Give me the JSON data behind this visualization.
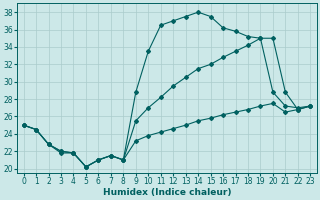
{
  "xlabel": "Humidex (Indice chaleur)",
  "background_color": "#cce8e8",
  "grid_color": "#aacccc",
  "line_color": "#006060",
  "xlim": [
    -0.5,
    23.5
  ],
  "ylim": [
    19.5,
    39.0
  ],
  "xticks": [
    0,
    1,
    2,
    3,
    4,
    5,
    6,
    7,
    8,
    9,
    10,
    11,
    12,
    13,
    14,
    15,
    16,
    17,
    18,
    19,
    20,
    21,
    22,
    23
  ],
  "yticks": [
    20,
    22,
    24,
    26,
    28,
    30,
    32,
    34,
    36,
    38
  ],
  "line1_x": [
    0,
    1,
    2,
    3,
    4,
    5,
    6,
    7,
    8,
    9,
    10,
    11,
    12,
    13,
    14,
    15,
    16,
    17,
    18,
    19,
    20,
    21,
    22,
    23
  ],
  "line1_y": [
    25.0,
    24.5,
    22.8,
    21.8,
    21.8,
    20.2,
    21.0,
    21.5,
    21.0,
    28.8,
    33.5,
    36.5,
    37.0,
    37.5,
    38.0,
    37.5,
    36.2,
    35.8,
    35.2,
    35.0,
    28.8,
    27.2,
    27.0,
    27.2
  ],
  "line2_x": [
    0,
    1,
    2,
    3,
    4,
    5,
    6,
    7,
    8,
    9,
    10,
    11,
    12,
    13,
    14,
    15,
    16,
    17,
    18,
    19,
    20,
    21,
    22,
    23
  ],
  "line2_y": [
    25.0,
    24.5,
    22.8,
    22.0,
    21.8,
    20.2,
    21.0,
    21.5,
    21.0,
    25.5,
    27.0,
    28.2,
    29.5,
    30.5,
    31.5,
    32.0,
    32.8,
    33.5,
    34.2,
    35.0,
    35.0,
    28.8,
    26.8,
    27.2
  ],
  "line3_x": [
    0,
    1,
    2,
    3,
    4,
    5,
    6,
    7,
    8,
    9,
    10,
    11,
    12,
    13,
    14,
    15,
    16,
    17,
    18,
    19,
    20,
    21,
    22,
    23
  ],
  "line3_y": [
    25.0,
    24.5,
    22.8,
    22.0,
    21.8,
    20.2,
    21.0,
    21.5,
    21.0,
    23.2,
    23.8,
    24.2,
    24.6,
    25.0,
    25.5,
    25.8,
    26.2,
    26.5,
    26.8,
    27.2,
    27.5,
    26.5,
    26.8,
    27.2
  ]
}
